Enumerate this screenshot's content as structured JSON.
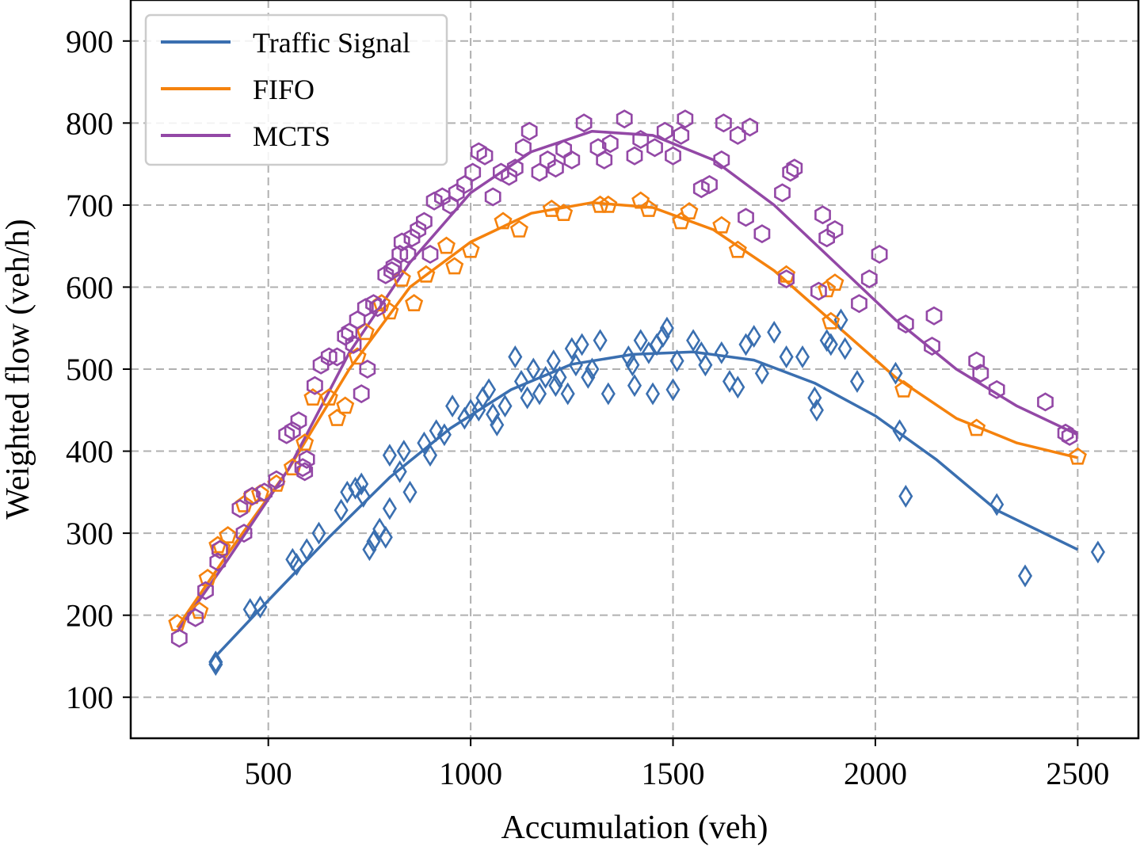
{
  "chart_data": {
    "type": "scatter",
    "xlabel": "Accumulation (veh)",
    "ylabel": "Weighted flow (veh/h)",
    "xlim": [
      160,
      2650
    ],
    "ylim": [
      50,
      950
    ],
    "xticks": [
      500,
      1000,
      1500,
      2000,
      2500
    ],
    "yticks": [
      100,
      200,
      300,
      400,
      500,
      600,
      700,
      800,
      900
    ],
    "grid": true,
    "legend_position": "top-left",
    "series": [
      {
        "name": "Traffic Signal",
        "color": "#3a6fb0",
        "marker": "diamond",
        "points": [
          [
            370,
            143
          ],
          [
            370,
            140
          ],
          [
            455,
            207
          ],
          [
            480,
            210
          ],
          [
            560,
            268
          ],
          [
            570,
            262
          ],
          [
            595,
            280
          ],
          [
            625,
            300
          ],
          [
            680,
            328
          ],
          [
            695,
            350
          ],
          [
            715,
            355
          ],
          [
            730,
            360
          ],
          [
            735,
            345
          ],
          [
            750,
            280
          ],
          [
            760,
            290
          ],
          [
            775,
            305
          ],
          [
            790,
            295
          ],
          [
            800,
            330
          ],
          [
            800,
            395
          ],
          [
            825,
            375
          ],
          [
            835,
            400
          ],
          [
            850,
            350
          ],
          [
            885,
            410
          ],
          [
            900,
            395
          ],
          [
            915,
            425
          ],
          [
            935,
            420
          ],
          [
            955,
            455
          ],
          [
            985,
            440
          ],
          [
            1000,
            450
          ],
          [
            1020,
            450
          ],
          [
            1030,
            465
          ],
          [
            1045,
            475
          ],
          [
            1055,
            445
          ],
          [
            1065,
            432
          ],
          [
            1085,
            455
          ],
          [
            1110,
            515
          ],
          [
            1125,
            485
          ],
          [
            1140,
            465
          ],
          [
            1155,
            500
          ],
          [
            1170,
            470
          ],
          [
            1185,
            490
          ],
          [
            1205,
            510
          ],
          [
            1210,
            480
          ],
          [
            1220,
            490
          ],
          [
            1240,
            470
          ],
          [
            1250,
            525
          ],
          [
            1260,
            505
          ],
          [
            1275,
            530
          ],
          [
            1290,
            490
          ],
          [
            1300,
            500
          ],
          [
            1320,
            535
          ],
          [
            1340,
            470
          ],
          [
            1390,
            515
          ],
          [
            1400,
            505
          ],
          [
            1405,
            480
          ],
          [
            1420,
            535
          ],
          [
            1440,
            520
          ],
          [
            1450,
            470
          ],
          [
            1460,
            530
          ],
          [
            1475,
            540
          ],
          [
            1485,
            550
          ],
          [
            1500,
            475
          ],
          [
            1510,
            510
          ],
          [
            1550,
            535
          ],
          [
            1570,
            520
          ],
          [
            1580,
            505
          ],
          [
            1620,
            520
          ],
          [
            1640,
            485
          ],
          [
            1660,
            478
          ],
          [
            1680,
            530
          ],
          [
            1700,
            540
          ],
          [
            1720,
            495
          ],
          [
            1750,
            545
          ],
          [
            1780,
            515
          ],
          [
            1820,
            515
          ],
          [
            1850,
            465
          ],
          [
            1855,
            450
          ],
          [
            1880,
            535
          ],
          [
            1890,
            530
          ],
          [
            1915,
            560
          ],
          [
            1925,
            525
          ],
          [
            1955,
            485
          ],
          [
            2050,
            495
          ],
          [
            2060,
            425
          ],
          [
            2075,
            345
          ],
          [
            2300,
            335
          ],
          [
            2370,
            248
          ],
          [
            2550,
            277
          ]
        ]
      },
      {
        "name": "FIFO",
        "color": "#f5820d",
        "marker": "pentagon",
        "points": [
          [
            275,
            190
          ],
          [
            330,
            205
          ],
          [
            350,
            245
          ],
          [
            375,
            285
          ],
          [
            385,
            282
          ],
          [
            400,
            297
          ],
          [
            440,
            335
          ],
          [
            460,
            345
          ],
          [
            480,
            348
          ],
          [
            520,
            360
          ],
          [
            560,
            380
          ],
          [
            590,
            410
          ],
          [
            610,
            465
          ],
          [
            650,
            465
          ],
          [
            670,
            440
          ],
          [
            690,
            455
          ],
          [
            720,
            515
          ],
          [
            740,
            545
          ],
          [
            780,
            580
          ],
          [
            800,
            570
          ],
          [
            830,
            610
          ],
          [
            860,
            580
          ],
          [
            890,
            615
          ],
          [
            940,
            650
          ],
          [
            960,
            625
          ],
          [
            1000,
            645
          ],
          [
            1080,
            680
          ],
          [
            1120,
            670
          ],
          [
            1200,
            695
          ],
          [
            1230,
            690
          ],
          [
            1320,
            700
          ],
          [
            1340,
            700
          ],
          [
            1420,
            705
          ],
          [
            1440,
            695
          ],
          [
            1520,
            680
          ],
          [
            1540,
            692
          ],
          [
            1620,
            675
          ],
          [
            1660,
            645
          ],
          [
            1780,
            615
          ],
          [
            1880,
            597
          ],
          [
            1900,
            605
          ],
          [
            1890,
            558
          ],
          [
            2070,
            475
          ],
          [
            2250,
            428
          ],
          [
            2500,
            393
          ]
        ]
      },
      {
        "name": "MCTS",
        "color": "#9348a6",
        "marker": "hexagon",
        "points": [
          [
            280,
            172
          ],
          [
            320,
            197
          ],
          [
            345,
            230
          ],
          [
            375,
            265
          ],
          [
            380,
            280
          ],
          [
            430,
            330
          ],
          [
            440,
            300
          ],
          [
            460,
            345
          ],
          [
            490,
            350
          ],
          [
            520,
            365
          ],
          [
            545,
            420
          ],
          [
            560,
            425
          ],
          [
            575,
            437
          ],
          [
            585,
            380
          ],
          [
            590,
            375
          ],
          [
            595,
            390
          ],
          [
            615,
            480
          ],
          [
            630,
            505
          ],
          [
            650,
            515
          ],
          [
            670,
            515
          ],
          [
            690,
            540
          ],
          [
            700,
            545
          ],
          [
            710,
            530
          ],
          [
            720,
            560
          ],
          [
            730,
            470
          ],
          [
            740,
            575
          ],
          [
            745,
            500
          ],
          [
            760,
            580
          ],
          [
            770,
            575
          ],
          [
            790,
            615
          ],
          [
            805,
            620
          ],
          [
            810,
            625
          ],
          [
            825,
            640
          ],
          [
            830,
            655
          ],
          [
            845,
            640
          ],
          [
            855,
            660
          ],
          [
            870,
            670
          ],
          [
            885,
            680
          ],
          [
            900,
            640
          ],
          [
            910,
            705
          ],
          [
            930,
            710
          ],
          [
            950,
            700
          ],
          [
            965,
            715
          ],
          [
            985,
            725
          ],
          [
            1005,
            740
          ],
          [
            1020,
            765
          ],
          [
            1035,
            760
          ],
          [
            1055,
            710
          ],
          [
            1075,
            740
          ],
          [
            1095,
            735
          ],
          [
            1110,
            745
          ],
          [
            1130,
            770
          ],
          [
            1145,
            790
          ],
          [
            1170,
            740
          ],
          [
            1190,
            755
          ],
          [
            1210,
            745
          ],
          [
            1230,
            768
          ],
          [
            1250,
            755
          ],
          [
            1280,
            800
          ],
          [
            1315,
            770
          ],
          [
            1330,
            755
          ],
          [
            1345,
            775
          ],
          [
            1380,
            805
          ],
          [
            1405,
            760
          ],
          [
            1420,
            780
          ],
          [
            1455,
            770
          ],
          [
            1480,
            790
          ],
          [
            1500,
            760
          ],
          [
            1520,
            785
          ],
          [
            1530,
            805
          ],
          [
            1570,
            720
          ],
          [
            1590,
            725
          ],
          [
            1620,
            755
          ],
          [
            1625,
            800
          ],
          [
            1660,
            785
          ],
          [
            1680,
            685
          ],
          [
            1690,
            795
          ],
          [
            1720,
            665
          ],
          [
            1770,
            715
          ],
          [
            1780,
            610
          ],
          [
            1790,
            740
          ],
          [
            1800,
            745
          ],
          [
            1860,
            595
          ],
          [
            1870,
            688
          ],
          [
            1880,
            660
          ],
          [
            1900,
            670
          ],
          [
            1960,
            580
          ],
          [
            1985,
            610
          ],
          [
            2010,
            640
          ],
          [
            2075,
            555
          ],
          [
            2140,
            528
          ],
          [
            2145,
            565
          ],
          [
            2250,
            510
          ],
          [
            2260,
            495
          ],
          [
            2300,
            475
          ],
          [
            2420,
            460
          ],
          [
            2470,
            422
          ],
          [
            2480,
            418
          ]
        ]
      }
    ],
    "fit_curves": [
      {
        "name": "Traffic Signal",
        "color": "#3a6fb0",
        "points": [
          [
            370,
            150
          ],
          [
            500,
            218
          ],
          [
            650,
            295
          ],
          [
            800,
            368
          ],
          [
            950,
            428
          ],
          [
            1100,
            475
          ],
          [
            1250,
            506
          ],
          [
            1400,
            518
          ],
          [
            1550,
            521
          ],
          [
            1700,
            511
          ],
          [
            1850,
            483
          ],
          [
            2000,
            443
          ],
          [
            2150,
            390
          ],
          [
            2300,
            328
          ],
          [
            2500,
            280
          ]
        ]
      },
      {
        "name": "FIFO",
        "color": "#f5820d",
        "points": [
          [
            275,
            185
          ],
          [
            400,
            275
          ],
          [
            550,
            378
          ],
          [
            700,
            500
          ],
          [
            850,
            600
          ],
          [
            1000,
            655
          ],
          [
            1150,
            690
          ],
          [
            1300,
            703
          ],
          [
            1450,
            697
          ],
          [
            1600,
            670
          ],
          [
            1750,
            620
          ],
          [
            1900,
            555
          ],
          [
            2050,
            490
          ],
          [
            2200,
            440
          ],
          [
            2350,
            410
          ],
          [
            2500,
            392
          ]
        ]
      },
      {
        "name": "MCTS",
        "color": "#9348a6",
        "points": [
          [
            275,
            180
          ],
          [
            400,
            268
          ],
          [
            550,
            378
          ],
          [
            700,
            520
          ],
          [
            850,
            630
          ],
          [
            1000,
            715
          ],
          [
            1150,
            765
          ],
          [
            1300,
            790
          ],
          [
            1450,
            785
          ],
          [
            1600,
            755
          ],
          [
            1750,
            700
          ],
          [
            1900,
            630
          ],
          [
            2050,
            560
          ],
          [
            2200,
            500
          ],
          [
            2350,
            455
          ],
          [
            2500,
            420
          ]
        ]
      }
    ]
  }
}
